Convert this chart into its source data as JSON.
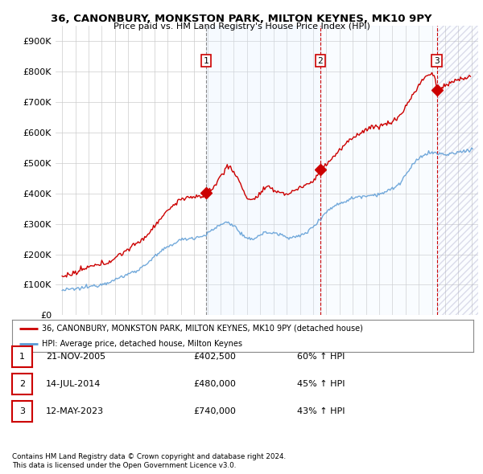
{
  "title": "36, CANONBURY, MONKSTON PARK, MILTON KEYNES, MK10 9PY",
  "subtitle": "Price paid vs. HM Land Registry's House Price Index (HPI)",
  "ylim": [
    0,
    950000
  ],
  "yticks": [
    0,
    100000,
    200000,
    300000,
    400000,
    500000,
    600000,
    700000,
    800000,
    900000
  ],
  "ytick_labels": [
    "£0",
    "£100K",
    "£200K",
    "£300K",
    "£400K",
    "£500K",
    "£600K",
    "£700K",
    "£800K",
    "£900K"
  ],
  "sale_year_nums": [
    2005.89,
    2014.54,
    2023.37
  ],
  "sale_prices": [
    402500,
    480000,
    740000
  ],
  "sale_labels": [
    "1",
    "2",
    "3"
  ],
  "legend_line1": "36, CANONBURY, MONKSTON PARK, MILTON KEYNES, MK10 9PY (detached house)",
  "legend_line2": "HPI: Average price, detached house, Milton Keynes",
  "table_rows": [
    [
      "1",
      "21-NOV-2005",
      "£402,500",
      "60% ↑ HPI"
    ],
    [
      "2",
      "14-JUL-2014",
      "£480,000",
      "45% ↑ HPI"
    ],
    [
      "3",
      "12-MAY-2023",
      "£740,000",
      "43% ↑ HPI"
    ]
  ],
  "footnote1": "Contains HM Land Registry data © Crown copyright and database right 2024.",
  "footnote2": "This data is licensed under the Open Government Licence v3.0.",
  "hpi_color": "#5b9bd5",
  "price_color": "#cc0000",
  "vline_color_gray": "#888888",
  "vline_color_red": "#cc0000",
  "grid_color": "#cccccc",
  "band_color": "#ddeeff",
  "background_color": "#ffffff",
  "xlim_left": 1994.5,
  "xlim_right": 2026.5
}
